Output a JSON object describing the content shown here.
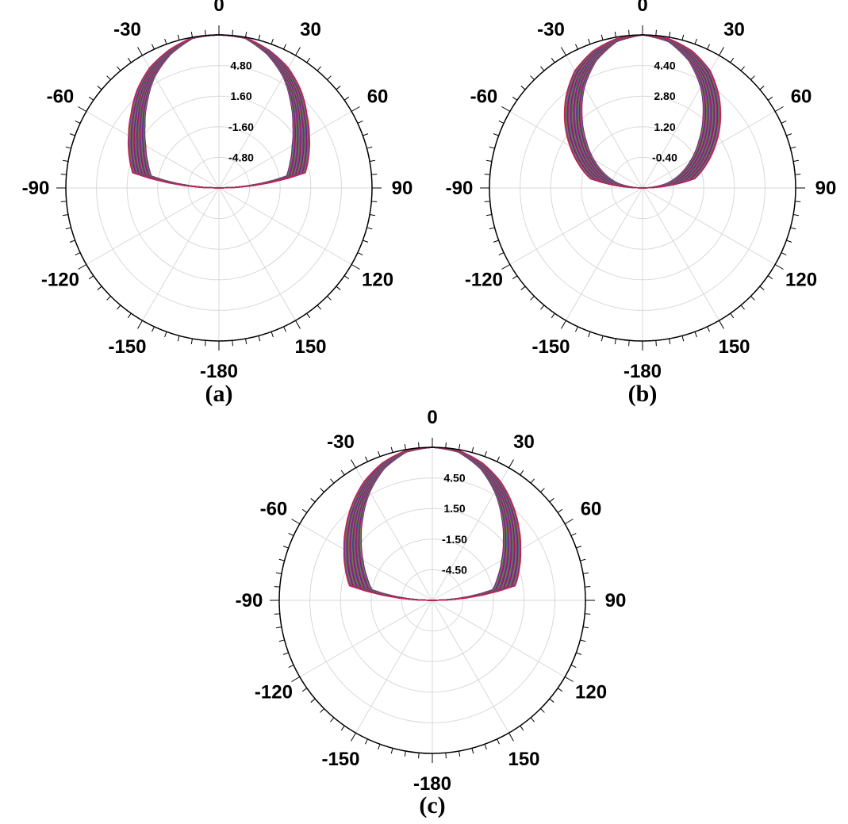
{
  "chart_data": [
    {
      "type": "line",
      "coordinate_system": "polar",
      "caption": "(a)",
      "angle_ticks": [
        "0",
        "30",
        "60",
        "90",
        "120",
        "150",
        "-180",
        "-150",
        "-120",
        "-90",
        "-60",
        "-30"
      ],
      "radial_ticks": [
        "4.80",
        "1.60",
        "-1.60",
        "-4.80"
      ],
      "rlim": [
        -11.2,
        8.0
      ],
      "grid": true,
      "legend": "none",
      "series_count": 60,
      "envelope": {
        "theta": [
          0,
          10,
          20,
          30,
          40,
          50,
          60,
          70,
          80,
          90
        ],
        "r_outer": [
          8.0,
          7.95,
          7.2,
          6.2,
          4.8,
          3.2,
          1.9,
          0.8,
          -0.2,
          -11.2
        ],
        "r_inner": [
          8.0,
          7.85,
          6.6,
          4.9,
          2.8,
          0.9,
          -0.6,
          -1.7,
          -2.6,
          -11.2
        ]
      }
    },
    {
      "type": "line",
      "coordinate_system": "polar",
      "caption": "(b)",
      "angle_ticks": [
        "0",
        "30",
        "60",
        "90",
        "120",
        "150",
        "-180",
        "-150",
        "-120",
        "-90",
        "-60",
        "-30"
      ],
      "radial_ticks": [
        "4.40",
        "2.80",
        "1.20",
        "-0.40"
      ],
      "rlim": [
        -4.4,
        6.0
      ],
      "grid": true,
      "legend": "none",
      "series_count": 60,
      "envelope": {
        "theta": [
          0,
          10,
          20,
          30,
          40,
          50,
          60,
          70,
          80,
          90
        ],
        "r_outer": [
          6.0,
          5.9,
          5.5,
          4.8,
          3.7,
          2.5,
          1.3,
          0.2,
          -0.8,
          -4.4
        ],
        "r_inner": [
          6.0,
          5.7,
          4.8,
          3.5,
          2.0,
          0.6,
          -0.6,
          -1.7,
          -2.8,
          -4.4
        ]
      }
    },
    {
      "type": "line",
      "coordinate_system": "polar",
      "caption": "(c)",
      "angle_ticks": [
        "0",
        "30",
        "60",
        "90",
        "120",
        "150",
        "-180",
        "-150",
        "-120",
        "-90",
        "-60",
        "-30"
      ],
      "radial_ticks": [
        "4.50",
        "1.50",
        "-1.50",
        "-4.50"
      ],
      "rlim": [
        -10.5,
        7.5
      ],
      "grid": true,
      "legend": "none",
      "series_count": 60,
      "envelope": {
        "theta": [
          0,
          10,
          20,
          30,
          40,
          50,
          60,
          70,
          80,
          90
        ],
        "r_outer": [
          7.5,
          7.4,
          6.7,
          5.6,
          4.2,
          2.8,
          1.5,
          0.4,
          -0.6,
          -10.5
        ],
        "r_inner": [
          7.5,
          7.2,
          6.0,
          4.2,
          2.2,
          0.4,
          -1.1,
          -2.3,
          -3.3,
          -10.5
        ]
      }
    }
  ],
  "palette": [
    "#c0003c",
    "#7a1fa2",
    "#1f3cc0",
    "#2e8b57",
    "#d2691e",
    "#008b8b",
    "#b8860b",
    "#8b008b",
    "#4169e1",
    "#dc143c"
  ]
}
